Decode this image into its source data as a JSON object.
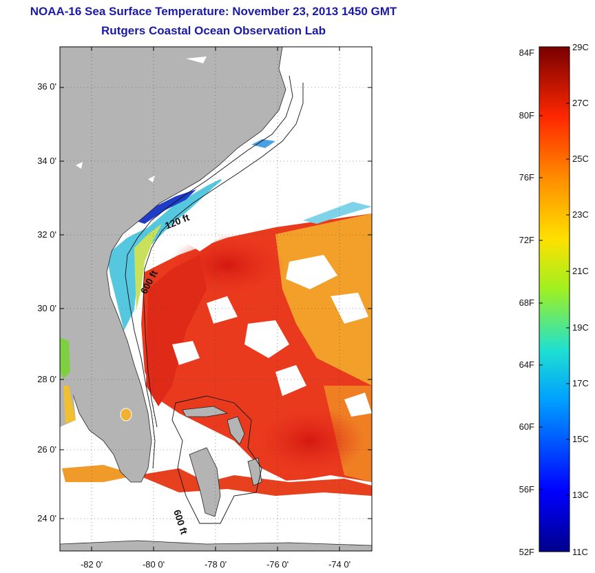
{
  "title": "NOAA-16 Sea Surface Temperature:  November 23, 2013 1450 GMT",
  "subtitle": "Rutgers Coastal Ocean Observation Lab",
  "map": {
    "lat_ticks": [
      "36 0'",
      "34 0'",
      "32 0'",
      "30 0'",
      "28 0'",
      "26 0'",
      "24 0'"
    ],
    "lon_ticks": [
      "-82 0'",
      "-80 0'",
      "-78 0'",
      "-76 0'",
      "-74 0'"
    ],
    "contour_labels": [
      "120 ft",
      "600 ft",
      "600 ft"
    ],
    "colors": {
      "land": "#b4b4b4",
      "cloud": "#ffffff",
      "ocean_warm": "#e8321e",
      "ocean_hot": "#d81e12",
      "ocean_orange": "#f08a20",
      "ocean_yellow": "#f5b430",
      "coastal_cool": "#40c0e8",
      "coastal_cold": "#1e3cc8"
    }
  },
  "colorbar": {
    "fahrenheit_labels": [
      "84F",
      "80F",
      "76F",
      "72F",
      "68F",
      "64F",
      "60F",
      "56F",
      "52F"
    ],
    "celsius_labels": [
      "29C",
      "27C",
      "25C",
      "23C",
      "21C",
      "19C",
      "17C",
      "15C",
      "13C",
      "11C"
    ],
    "range_c": [
      11,
      29
    ]
  }
}
